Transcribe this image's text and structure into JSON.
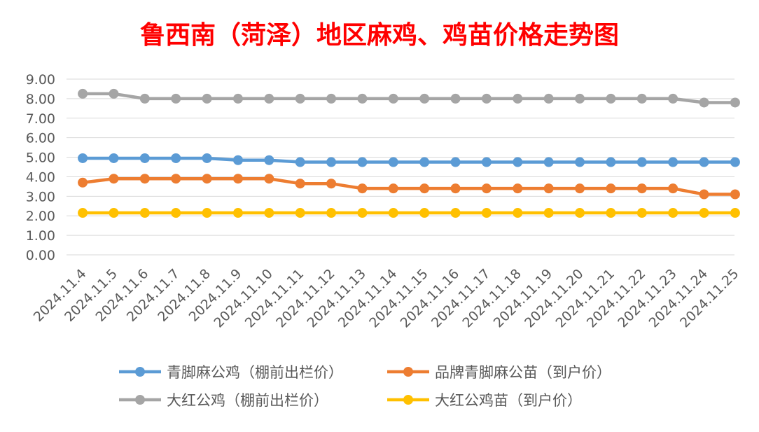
{
  "chart_data": {
    "type": "line",
    "title": "鲁西南（菏泽）地区麻鸡、鸡苗价格走势图",
    "categories": [
      "2024.11.4",
      "2024.11.5",
      "2024.11.6",
      "2024.11.7",
      "2024.11.8",
      "2024.11.9",
      "2024.11.10",
      "2024.11.11",
      "2024.11.12",
      "2024.11.13",
      "2024.11.14",
      "2024.11.15",
      "2024.11.16",
      "2024.11.17",
      "2024.11.18",
      "2024.11.19",
      "2024.11.20",
      "2024.11.21",
      "2024.11.22",
      "2024.11.23",
      "2024.11.24",
      "2024.11.25"
    ],
    "yticks": [
      "0.00",
      "1.00",
      "2.00",
      "3.00",
      "4.00",
      "5.00",
      "6.00",
      "7.00",
      "8.00",
      "9.00"
    ],
    "ylim": [
      0,
      9
    ],
    "grid": true,
    "legend_position": "bottom",
    "series": [
      {
        "name": "青脚麻公鸡（棚前出栏价）",
        "color": "#5b9bd5",
        "values": [
          4.95,
          4.95,
          4.95,
          4.95,
          4.95,
          4.85,
          4.85,
          4.75,
          4.75,
          4.75,
          4.75,
          4.75,
          4.75,
          4.75,
          4.75,
          4.75,
          4.75,
          4.75,
          4.75,
          4.75,
          4.75,
          4.75
        ]
      },
      {
        "name": "品牌青脚麻公苗（到户价）",
        "color": "#ed7d31",
        "values": [
          3.7,
          3.9,
          3.9,
          3.9,
          3.9,
          3.9,
          3.9,
          3.65,
          3.65,
          3.4,
          3.4,
          3.4,
          3.4,
          3.4,
          3.4,
          3.4,
          3.4,
          3.4,
          3.4,
          3.4,
          3.1,
          3.1
        ]
      },
      {
        "name": "大红公鸡（棚前出栏价）",
        "color": "#a5a5a5",
        "values": [
          8.25,
          8.25,
          8.0,
          8.0,
          8.0,
          8.0,
          8.0,
          8.0,
          8.0,
          8.0,
          8.0,
          8.0,
          8.0,
          8.0,
          8.0,
          8.0,
          8.0,
          8.0,
          8.0,
          8.0,
          7.8,
          7.8
        ]
      },
      {
        "name": "大红公鸡苗（到户价）",
        "color": "#ffc000",
        "values": [
          2.15,
          2.15,
          2.15,
          2.15,
          2.15,
          2.15,
          2.15,
          2.15,
          2.15,
          2.15,
          2.15,
          2.15,
          2.15,
          2.15,
          2.15,
          2.15,
          2.15,
          2.15,
          2.15,
          2.15,
          2.15,
          2.15
        ]
      }
    ]
  }
}
